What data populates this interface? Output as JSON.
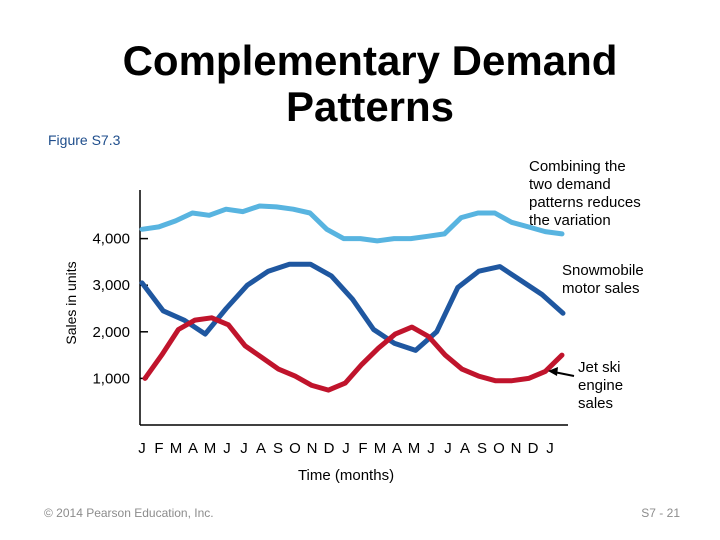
{
  "slide": {
    "title": "Complementary Demand Patterns",
    "figure_label": "Figure S7.3",
    "footer_left": "© 2014 Pearson Education, Inc.",
    "footer_right": "S7 - 21"
  },
  "chart_data": {
    "type": "line",
    "ylabel": "Sales in units",
    "xlabel": "Time (months)",
    "yticks": [
      1000,
      2000,
      3000,
      4000
    ],
    "ytick_labels": [
      "1,000",
      "2,000",
      "3,000",
      "4,000"
    ],
    "ylim": [
      0,
      5000
    ],
    "x_tick_labels": [
      "J",
      "F",
      "M",
      "A",
      "M",
      "J",
      "J",
      "A",
      "S",
      "O",
      "N",
      "D",
      "J",
      "F",
      "M",
      "A",
      "M",
      "J",
      "J",
      "A",
      "S",
      "O",
      "N",
      "D",
      "J"
    ],
    "series": [
      {
        "key": "combined",
        "color": "#58b4e0",
        "values": [
          4200,
          4250,
          4380,
          4550,
          4500,
          4630,
          4580,
          4700,
          4680,
          4630,
          4550,
          4200,
          4000,
          4000,
          3950,
          4000,
          4000,
          4050,
          4100,
          4450,
          4550,
          4550,
          4350,
          4250,
          4150,
          4100
        ]
      },
      {
        "key": "snowmobile",
        "color": "#1f57a0",
        "values": [
          3050,
          2450,
          2250,
          1950,
          2500,
          3000,
          3300,
          3450,
          3450,
          3200,
          2700,
          2050,
          1750,
          1600,
          2000,
          2950,
          3300,
          3400,
          3100,
          2800,
          2400
        ]
      },
      {
        "key": "jetski",
        "color": "#c0142c",
        "values": [
          1000,
          1500,
          2050,
          2250,
          2300,
          2150,
          1700,
          1450,
          1200,
          1050,
          850,
          750,
          900,
          1300,
          1650,
          1950,
          2100,
          1900,
          1500,
          1200,
          1050,
          950,
          950,
          1000,
          1150,
          1500
        ]
      }
    ],
    "annotations": {
      "combined": "Combining the two demand patterns reduces the variation",
      "snowmobile": "Snowmobile motor sales",
      "jetski": "Jet ski engine sales"
    }
  }
}
